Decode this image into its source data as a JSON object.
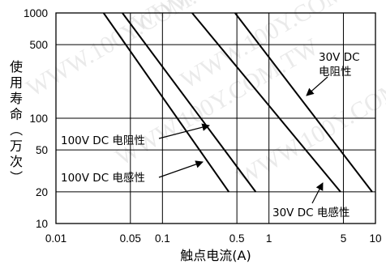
{
  "chart_data": {
    "type": "line",
    "xscale": "log",
    "yscale": "log",
    "xlim": [
      0.01,
      10
    ],
    "ylim": [
      10,
      1000
    ],
    "xlabel": "触点电流(A)",
    "ylabel": "使用寿命（万次）",
    "ylabel_chars": [
      "使",
      "用",
      "寿",
      "命",
      "（",
      "万",
      "次",
      "）"
    ],
    "x_ticks": [
      {
        "value": 0.01,
        "label": "0.01"
      },
      {
        "value": 0.05,
        "label": "0.05"
      },
      {
        "value": 0.1,
        "label": "0.1"
      },
      {
        "value": 0.5,
        "label": "0.5"
      },
      {
        "value": 1,
        "label": "1"
      },
      {
        "value": 5,
        "label": "5"
      },
      {
        "value": 10,
        "label": "10"
      }
    ],
    "y_ticks": [
      {
        "value": 10,
        "label": "10"
      },
      {
        "value": 20,
        "label": "20"
      },
      {
        "value": 50,
        "label": "50"
      },
      {
        "value": 100,
        "label": "100"
      },
      {
        "value": 500,
        "label": "500"
      },
      {
        "value": 1000,
        "label": "1000"
      }
    ],
    "x_grid": [
      0.01,
      0.05,
      0.1,
      0.5,
      1,
      5,
      10
    ],
    "y_grid": [
      10,
      20,
      50,
      100,
      500,
      1000
    ],
    "grid": true,
    "series": [
      {
        "name": "100V DC 电阻性",
        "x": [
          0.028,
          0.42
        ],
        "y": [
          1000,
          20
        ]
      },
      {
        "name": "100V DC 电感性",
        "x": [
          0.042,
          0.75
        ],
        "y": [
          1000,
          20
        ]
      },
      {
        "name": "30V DC 电阻性",
        "x": [
          0.48,
          9.3
        ],
        "y": [
          1000,
          20
        ]
      },
      {
        "name": "30V DC 电感性",
        "x": [
          0.19,
          4.7
        ],
        "y": [
          1000,
          20
        ]
      }
    ],
    "annotations": [
      {
        "lines": [
          "30V DC",
          "电阻性"
        ],
        "series": 2
      },
      {
        "lines": [
          "100V DC 电阻性"
        ],
        "series": 0
      },
      {
        "lines": [
          "100V DC 电感性"
        ],
        "series": 1
      },
      {
        "lines": [
          "30V DC 电感性"
        ],
        "series": 3
      }
    ],
    "watermark": "WWW.100Y.COM.TW",
    "colors": {
      "line": "#000000",
      "grid": "#000000",
      "watermark": "#d2d2d2"
    }
  }
}
